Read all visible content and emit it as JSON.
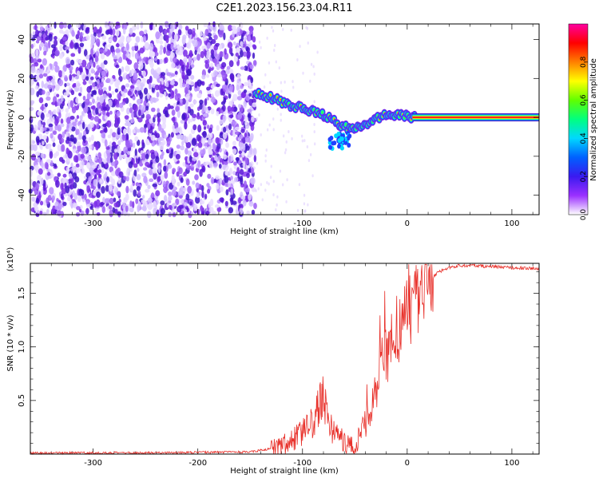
{
  "title": "C2E1.2023.156.23.04.R11",
  "colors": {
    "snr_line": "#e8302a",
    "axis": "#000000",
    "noise_purple": "#6a1ad9",
    "ridge_core": "#e01828"
  },
  "chart_data": [
    {
      "type": "heatmap",
      "xlabel": "Height of straight line (km)",
      "ylabel": "Frequency (Hz)",
      "xlim": [
        -360,
        126
      ],
      "ylim": [
        -50,
        48
      ],
      "xticks": [
        -300,
        -200,
        -100,
        0,
        100
      ],
      "yticks": [
        -40,
        -20,
        0,
        20,
        40
      ],
      "noise_region_x": [
        -360,
        -145
      ],
      "ridge": {
        "x": [
          -145,
          -130,
          -110,
          -90,
          -75,
          -60,
          -50,
          -40,
          -30,
          -20,
          -10,
          0,
          5,
          126
        ],
        "y": [
          13,
          10,
          6,
          3,
          0,
          -5,
          -6,
          -4,
          -1,
          1,
          1,
          1,
          0,
          0
        ]
      },
      "colorbar": {
        "label": "Normalized spectral amplitude",
        "range": [
          0,
          1
        ],
        "ticks": [
          0.0,
          0.2,
          0.4,
          0.6,
          0.8
        ],
        "colors": [
          "#ffffff",
          "#9b30ff",
          "#3a1af0",
          "#0060ff",
          "#00d8ff",
          "#00ff80",
          "#60ff00",
          "#ffff00",
          "#ff8000",
          "#ff0000",
          "#ff00a0"
        ]
      }
    },
    {
      "type": "line",
      "xlabel": "Height of straight line (km)",
      "ylabel": "SNR (10 * v/v)",
      "y_multiplier": "(x10⁴)",
      "xlim": [
        -360,
        126
      ],
      "ylim": [
        0,
        1.78
      ],
      "xticks": [
        -300,
        -200,
        -100,
        0,
        100
      ],
      "yticks": [
        0.5,
        1.0,
        1.5
      ],
      "ytick_labels": [
        "0.5",
        "1.0",
        "1.5"
      ],
      "series": [
        {
          "x": [
            -360,
            -250,
            -150,
            -130,
            -110,
            -100,
            -90,
            -80,
            -75,
            -70,
            -60,
            -50,
            -40,
            -30,
            -20,
            -10,
            0,
            10,
            20,
            30,
            40,
            50,
            60,
            80,
            100,
            126
          ],
          "y": [
            0.01,
            0.012,
            0.02,
            0.05,
            0.12,
            0.2,
            0.3,
            0.55,
            0.3,
            0.2,
            0.12,
            0.05,
            0.3,
            0.6,
            0.95,
            1.15,
            1.3,
            1.45,
            1.6,
            1.7,
            1.74,
            1.76,
            1.76,
            1.75,
            1.74,
            1.73
          ]
        }
      ]
    }
  ]
}
